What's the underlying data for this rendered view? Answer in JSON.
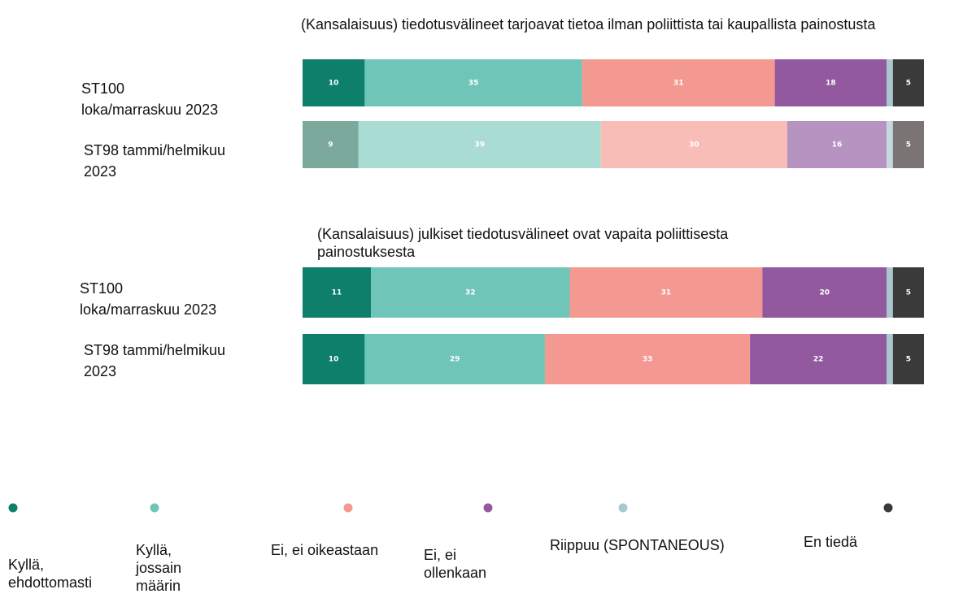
{
  "chart_data": [
    {
      "type": "bar",
      "orientation": "horizontal",
      "stacked": true,
      "title": "(Kansalaisuus) tiedotusvälineet tarjoavat tietoa ilman poliittista tai kaupallista painostusta",
      "categories": [
        "ST100 loka/marraskuu 2023",
        "ST98 tammi/helmikuu 2023"
      ],
      "xlim": [
        0,
        100
      ],
      "series": [
        {
          "name": "Kyllä, ehdottomasti",
          "color": "#0e7f6b",
          "colors": [
            "#0e7f6b",
            "#7ba99c"
          ],
          "values": [
            10,
            9
          ]
        },
        {
          "name": "Kyllä, jossain määrin",
          "color": "#6fc6b8",
          "colors": [
            "#6fc6b8",
            "#a9dcd2"
          ],
          "values": [
            35,
            39
          ]
        },
        {
          "name": "Ei, ei oikeastaan",
          "color": "#f49892",
          "colors": [
            "#f49892",
            "#f8bdb7"
          ],
          "values": [
            31,
            30
          ]
        },
        {
          "name": "Ei, ei ollenkaan",
          "color": "#92599f",
          "colors": [
            "#92599f",
            "#b793c1"
          ],
          "values": [
            18,
            16
          ]
        },
        {
          "name": "Riippuu (SPONTANEOUS)",
          "color": "#a8c8d0",
          "colors": [
            "#a8c8d0",
            "#c3d9de"
          ],
          "values": [
            1,
            1
          ]
        },
        {
          "name": "En tiedä",
          "color": "#3a3a3a",
          "colors": [
            "#3a3a3a",
            "#7a7474"
          ],
          "values": [
            5,
            5
          ]
        }
      ]
    },
    {
      "type": "bar",
      "orientation": "horizontal",
      "stacked": true,
      "title": "(Kansalaisuus) julkiset tiedotusvälineet ovat vapaita poliittisesta painostuksesta",
      "categories": [
        "ST100 loka/marraskuu 2023",
        "ST98 tammi/helmikuu 2023"
      ],
      "xlim": [
        0,
        100
      ],
      "series": [
        {
          "color": "#0e7f6b",
          "values": [
            11,
            10
          ]
        },
        {
          "color": "#6fc6b8",
          "values": [
            32,
            29
          ]
        },
        {
          "color": "#f49892",
          "values": [
            31,
            33
          ]
        },
        {
          "color": "#92599f",
          "values": [
            20,
            22
          ]
        },
        {
          "color": "#a8c8d0",
          "values": [
            1,
            1
          ]
        },
        {
          "color": "#3a3a3a",
          "values": [
            5,
            5
          ]
        }
      ]
    }
  ]
}
